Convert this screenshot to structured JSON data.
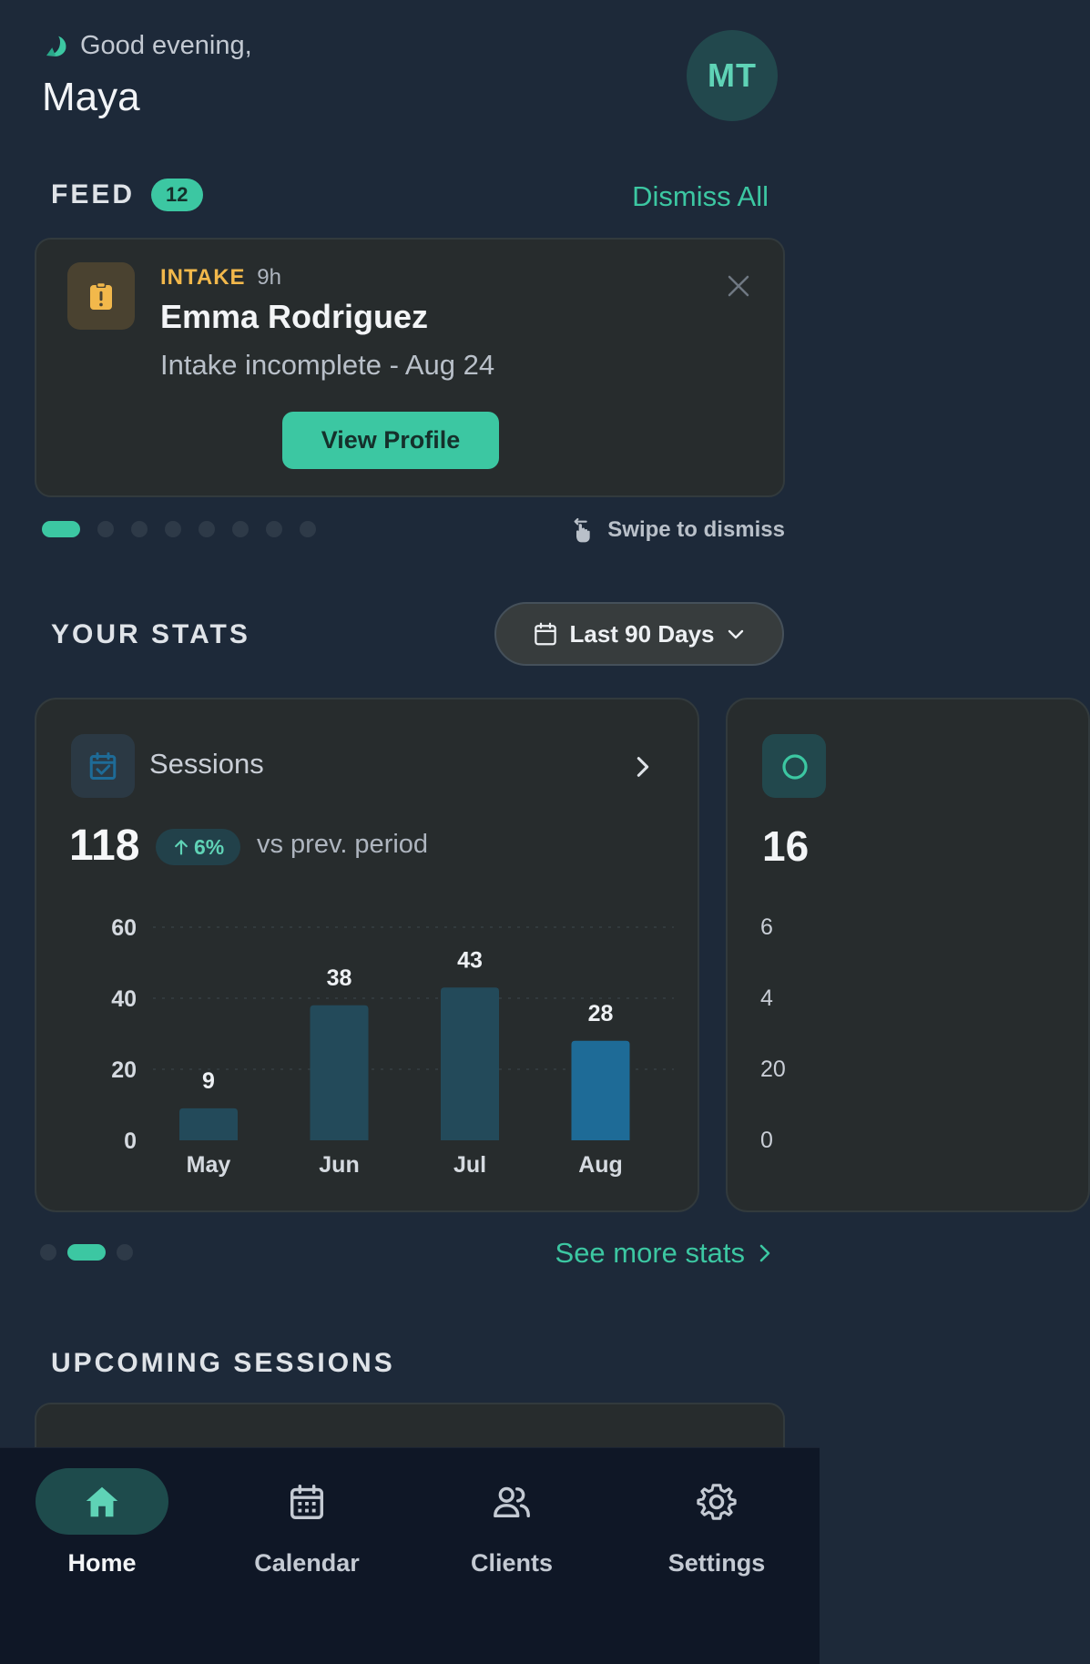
{
  "header": {
    "greeting": "Good evening,",
    "user_name": "Maya",
    "avatar_initials": "MT",
    "moon_icon": "moon-icon"
  },
  "feed": {
    "title": "FEED",
    "count": "12",
    "dismiss_all": "Dismiss All",
    "card": {
      "tag": "INTAKE",
      "age": "9h",
      "name": "Emma Rodriguez",
      "subtitle": "Intake incomplete - Aug 24",
      "action_label": "View Profile",
      "icon": "clipboard-alert-icon"
    },
    "pagination": {
      "total": 8,
      "active_index": 0
    },
    "swipe_hint": "Swipe to dismiss"
  },
  "stats": {
    "title": "YOUR STATS",
    "range_label": "Last 90 Days",
    "card": {
      "label": "Sessions",
      "total": "118",
      "delta": "6%",
      "delta_suffix": "vs prev. period"
    },
    "peek_card": {
      "total": "16",
      "ticks": [
        "6",
        "4",
        "20",
        "0"
      ]
    },
    "pagination": {
      "total": 3,
      "active_index": 1
    },
    "see_more": "See more stats"
  },
  "upcoming": {
    "title": "UPCOMING SESSIONS"
  },
  "nav": {
    "items": [
      {
        "label": "Home",
        "icon": "home-icon",
        "active": true
      },
      {
        "label": "Calendar",
        "icon": "calendar-icon",
        "active": false
      },
      {
        "label": "Clients",
        "icon": "people-icon",
        "active": false
      },
      {
        "label": "Settings",
        "icon": "gear-icon",
        "active": false
      }
    ]
  },
  "colors": {
    "background": "#1d2939",
    "card": "#272c2d",
    "accent": "#3cc7a2",
    "warning": "#f2b84b",
    "bar": "#234a5a",
    "bar_highlight": "#1e6b97"
  },
  "chart_data": {
    "type": "bar",
    "categories": [
      "May",
      "Jun",
      "Jul",
      "Aug"
    ],
    "values": [
      9,
      38,
      43,
      28
    ],
    "highlight_index": 3,
    "yticks": [
      0,
      20,
      40,
      60
    ],
    "ylim": [
      0,
      60
    ],
    "grid": true,
    "title": "",
    "xlabel": "",
    "ylabel": ""
  }
}
